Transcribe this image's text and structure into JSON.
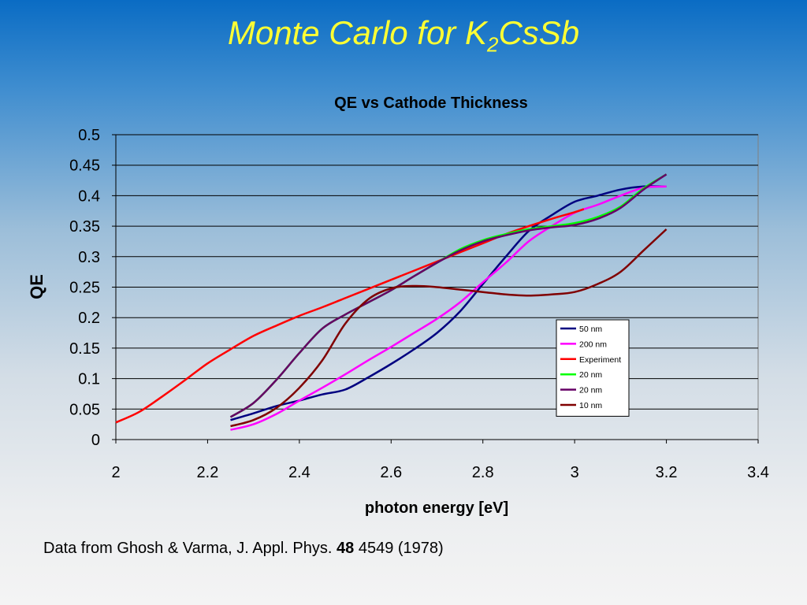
{
  "slide": {
    "title_main": "Monte Carlo for K",
    "title_sub": "2",
    "title_rest": "CsSb",
    "citation_pre": "Data from Ghosh & Varma, J. Appl. Phys. ",
    "citation_bold": "48",
    "citation_post": " 4549 (1978)"
  },
  "chart_data": {
    "type": "line",
    "title": "QE vs Cathode Thickness",
    "xlabel": "photon energy [eV]",
    "ylabel": "QE",
    "xlim": [
      2,
      3.4
    ],
    "ylim": [
      0,
      0.5
    ],
    "xticks": [
      "2",
      "2.2",
      "2.4",
      "2.6",
      "2.8",
      "3",
      "3.2",
      "3.4"
    ],
    "yticks": [
      "0",
      "0.05",
      "0.1",
      "0.15",
      "0.2",
      "0.25",
      "0.3",
      "0.35",
      "0.4",
      "0.45",
      "0.5"
    ],
    "xtick_values": [
      2,
      2.2,
      2.4,
      2.6,
      2.8,
      3,
      3.2,
      3.4
    ],
    "ytick_values": [
      0,
      0.05,
      0.1,
      0.15,
      0.2,
      0.25,
      0.3,
      0.35,
      0.4,
      0.45,
      0.5
    ],
    "grid": "horizontal",
    "legend_position": "right",
    "series": [
      {
        "name": "50 nm",
        "color": "#000080",
        "x": [
          2.25,
          2.3,
          2.35,
          2.4,
          2.45,
          2.5,
          2.55,
          2.6,
          2.65,
          2.7,
          2.75,
          2.8,
          2.85,
          2.9,
          2.95,
          3.0,
          3.05,
          3.1,
          3.15,
          3.2
        ],
        "y": [
          0.032,
          0.043,
          0.055,
          0.064,
          0.074,
          0.082,
          0.102,
          0.124,
          0.148,
          0.175,
          0.21,
          0.255,
          0.3,
          0.342,
          0.368,
          0.39,
          0.4,
          0.41,
          0.415,
          0.415
        ]
      },
      {
        "name": "200 nm",
        "color": "#ff00ff",
        "x": [
          2.25,
          2.3,
          2.35,
          2.4,
          2.45,
          2.5,
          2.55,
          2.6,
          2.65,
          2.7,
          2.75,
          2.8,
          2.85,
          2.9,
          2.95,
          3.0,
          3.05,
          3.1,
          3.15,
          3.2
        ],
        "y": [
          0.016,
          0.025,
          0.042,
          0.064,
          0.085,
          0.107,
          0.13,
          0.152,
          0.175,
          0.198,
          0.225,
          0.258,
          0.29,
          0.325,
          0.35,
          0.372,
          0.385,
          0.4,
          0.413,
          0.415
        ]
      },
      {
        "name": "Experiment",
        "color": "#ff0000",
        "x": [
          2.0,
          2.05,
          2.1,
          2.15,
          2.2,
          2.25,
          2.3,
          2.35,
          2.4,
          2.45,
          2.5,
          2.55,
          2.6,
          2.65,
          2.7,
          2.75,
          2.8,
          2.85,
          2.9,
          2.95,
          3.0,
          3.02
        ],
        "y": [
          0.028,
          0.045,
          0.07,
          0.097,
          0.125,
          0.148,
          0.17,
          0.187,
          0.203,
          0.217,
          0.232,
          0.247,
          0.262,
          0.277,
          0.292,
          0.307,
          0.322,
          0.337,
          0.35,
          0.362,
          0.373,
          0.378
        ]
      },
      {
        "name": "20 nm",
        "color": "#00ff00",
        "x": [
          2.25,
          2.3,
          2.35,
          2.4,
          2.45,
          2.5,
          2.55,
          2.6,
          2.65,
          2.7,
          2.75,
          2.8,
          2.85,
          2.9,
          2.95,
          3.0,
          3.05,
          3.1,
          3.15,
          3.2
        ],
        "y": [
          0.037,
          0.06,
          0.098,
          0.142,
          0.182,
          0.205,
          0.225,
          0.245,
          0.268,
          0.29,
          0.312,
          0.327,
          0.337,
          0.345,
          0.35,
          0.355,
          0.365,
          0.382,
          0.412,
          0.435
        ]
      },
      {
        "name": "20 nm",
        "color": "#660066",
        "x": [
          2.25,
          2.3,
          2.35,
          2.4,
          2.45,
          2.5,
          2.55,
          2.6,
          2.65,
          2.7,
          2.75,
          2.8,
          2.85,
          2.9,
          2.95,
          3.0,
          3.05,
          3.1,
          3.15,
          3.2
        ],
        "y": [
          0.037,
          0.06,
          0.098,
          0.142,
          0.182,
          0.205,
          0.225,
          0.245,
          0.268,
          0.29,
          0.31,
          0.325,
          0.335,
          0.343,
          0.348,
          0.352,
          0.362,
          0.38,
          0.41,
          0.435
        ]
      },
      {
        "name": "10 nm",
        "color": "#800000",
        "x": [
          2.25,
          2.3,
          2.35,
          2.4,
          2.45,
          2.5,
          2.55,
          2.6,
          2.65,
          2.7,
          2.75,
          2.8,
          2.85,
          2.9,
          2.95,
          3.0,
          3.05,
          3.1,
          3.15,
          3.2
        ],
        "y": [
          0.022,
          0.032,
          0.052,
          0.085,
          0.13,
          0.19,
          0.23,
          0.248,
          0.252,
          0.25,
          0.246,
          0.242,
          0.238,
          0.236,
          0.238,
          0.242,
          0.255,
          0.275,
          0.31,
          0.345
        ]
      }
    ]
  }
}
